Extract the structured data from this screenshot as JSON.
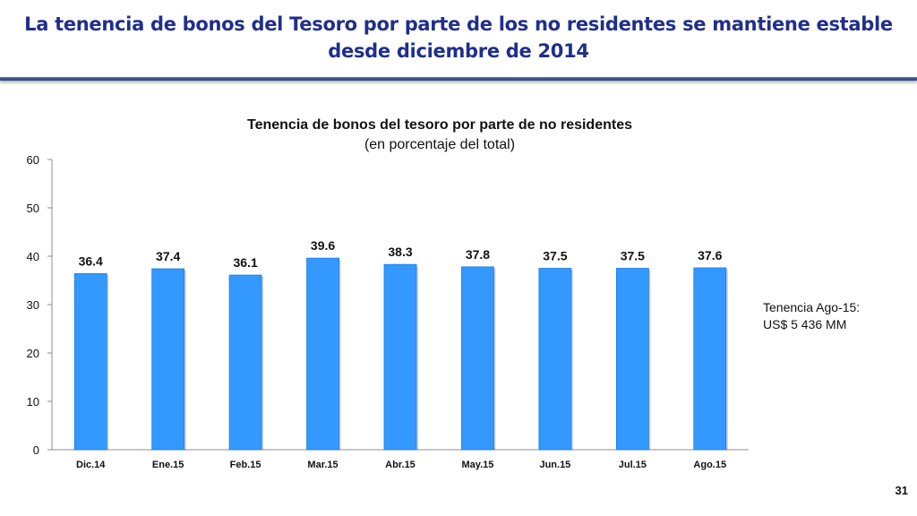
{
  "slide": {
    "title_line1": "La tenencia de bonos del Tesoro por parte de los no residentes se mantiene estable",
    "title_line2": "desde diciembre de 2014",
    "page_number": "31",
    "title_color": "#1f2f8c"
  },
  "note": {
    "line1": "Tenencia Ago-15:",
    "line2": "US$ 5 436 MM"
  },
  "chart_data": {
    "type": "bar",
    "title": "Tenencia de bonos del tesoro por parte de no residentes",
    "subtitle": "(en porcentaje del total)",
    "xlabel": "",
    "ylabel": "",
    "categories": [
      "Dic.14",
      "Ene.15",
      "Feb.15",
      "Mar.15",
      "Abr.15",
      "May.15",
      "Jun.15",
      "Jul.15",
      "Ago.15"
    ],
    "values": [
      36.4,
      37.4,
      36.1,
      39.6,
      38.3,
      37.8,
      37.5,
      37.5,
      37.6
    ],
    "value_labels": [
      "36.4",
      "37.4",
      "36.1",
      "39.6",
      "38.3",
      "37.8",
      "37.5",
      "37.5",
      "37.6"
    ],
    "ylim": [
      0,
      60
    ],
    "yticks": [
      "0",
      "10",
      "20",
      "30",
      "40",
      "50",
      "60"
    ],
    "grid": false,
    "legend": "none",
    "bar_color": "#3399ff"
  }
}
